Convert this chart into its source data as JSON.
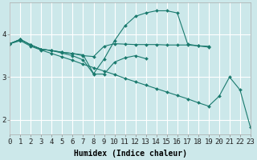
{
  "xlabel": "Humidex (Indice chaleur)",
  "bg_color": "#cce8ea",
  "grid_color": "#ffffff",
  "line_color": "#1a7a6e",
  "yticks": [
    2,
    3,
    4
  ],
  "xticks": [
    0,
    1,
    2,
    3,
    4,
    5,
    6,
    7,
    8,
    9,
    10,
    11,
    12,
    13,
    14,
    15,
    16,
    17,
    18,
    19,
    20,
    21,
    22,
    23
  ],
  "xlim": [
    0,
    23
  ],
  "ylim": [
    1.65,
    4.75
  ],
  "lines": [
    {
      "x": [
        0,
        1,
        2,
        3,
        4,
        5,
        6,
        7,
        8,
        9,
        10,
        11,
        12,
        13,
        14,
        15,
        16,
        17,
        18,
        19
      ],
      "y": [
        3.78,
        3.88,
        3.75,
        3.65,
        3.62,
        3.58,
        3.55,
        3.52,
        3.08,
        3.42,
        3.85,
        4.2,
        4.42,
        4.5,
        4.55,
        4.55,
        4.5,
        3.77,
        3.73,
        3.7
      ]
    },
    {
      "x": [
        0,
        1,
        2,
        3,
        4,
        5,
        6,
        7,
        8,
        9,
        10,
        11,
        12,
        13,
        14,
        15,
        16,
        17,
        18,
        19
      ],
      "y": [
        3.78,
        3.88,
        3.75,
        3.65,
        3.62,
        3.58,
        3.55,
        3.5,
        3.48,
        3.72,
        3.78,
        3.77,
        3.76,
        3.76,
        3.76,
        3.75,
        3.75,
        3.75,
        3.73,
        3.72
      ]
    },
    {
      "x": [
        0,
        1,
        2,
        3,
        4,
        5,
        6,
        7,
        8,
        9,
        10,
        11,
        12,
        13
      ],
      "y": [
        3.78,
        3.88,
        3.75,
        3.65,
        3.62,
        3.56,
        3.5,
        3.4,
        3.07,
        3.07,
        3.35,
        3.45,
        3.5,
        3.43
      ]
    },
    {
      "x": [
        0,
        1,
        2,
        3,
        4,
        5,
        6,
        7,
        8,
        9,
        10,
        11,
        12,
        13,
        14,
        15,
        16,
        17,
        18,
        19,
        20,
        21,
        22,
        23
      ],
      "y": [
        3.78,
        3.85,
        3.72,
        3.63,
        3.55,
        3.47,
        3.39,
        3.3,
        3.22,
        3.14,
        3.06,
        2.97,
        2.89,
        2.81,
        2.73,
        2.65,
        2.57,
        2.49,
        2.4,
        2.32,
        2.55,
        3.0,
        2.7,
        1.82
      ]
    }
  ],
  "fontsize_xlabel": 7,
  "tick_fontsize": 6.5
}
